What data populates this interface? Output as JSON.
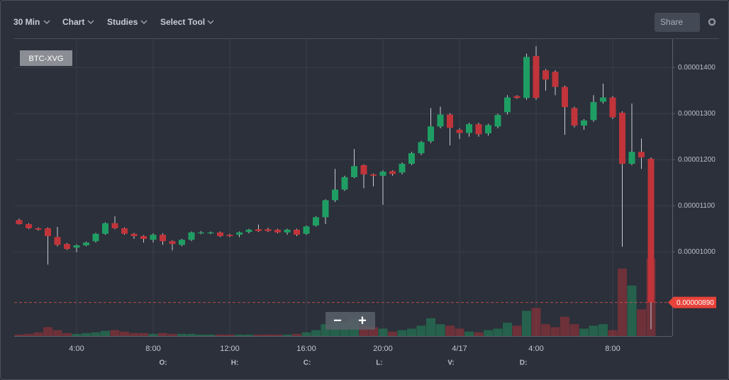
{
  "ui": {
    "interval": "30 Min",
    "chart_menu": "Chart",
    "studies_menu": "Studies",
    "tool_menu": "Select Tool",
    "share": "Share",
    "symbol": "BTC-XVG",
    "zoom_out": "−",
    "zoom_in": "+",
    "ohlc_labels": [
      "O:",
      "H:",
      "C:",
      "L:",
      "V:",
      "D:"
    ]
  },
  "chart_data": {
    "type": "candlestick",
    "categories": [
      null,
      null,
      null,
      null,
      null,
      null,
      "4:00",
      null,
      null,
      null,
      null,
      null,
      null,
      null,
      "8:00",
      null,
      null,
      null,
      null,
      null,
      null,
      null,
      "12:00",
      null,
      null,
      null,
      null,
      null,
      null,
      null,
      "16:00",
      null,
      null,
      null,
      null,
      null,
      null,
      null,
      "20:00",
      null,
      null,
      null,
      null,
      null,
      null,
      null,
      "4/17",
      null,
      null,
      null,
      null,
      null,
      null,
      null,
      "4:00",
      null,
      null,
      null,
      null,
      null,
      null,
      null,
      "8:00",
      null,
      null,
      null,
      null
    ],
    "open": [
      1.069e-05,
      1.06e-05,
      1.051e-05,
      1.051e-05,
      1.032e-05,
      1.017e-05,
      1.009e-05,
      1.014e-05,
      1.023e-05,
      1.039e-05,
      1.062e-05,
      1.051e-05,
      1.039e-05,
      1.034e-05,
      1.026e-05,
      1.037e-05,
      1.023e-05,
      1.015e-05,
      1.026e-05,
      1.04e-05,
      1.04e-05,
      1.042e-05,
      1.037e-05,
      1.037e-05,
      1.043e-05,
      1.049e-05,
      1.049e-05,
      1.048e-05,
      1.042e-05,
      1.048e-05,
      1.039e-05,
      1.057e-05,
      1.075e-05,
      1.112e-05,
      1.135e-05,
      1.162e-05,
      1.188e-05,
      1.168e-05,
      1.165e-05,
      1.175e-05,
      1.172e-05,
      1.191e-05,
      1.214e-05,
      1.24e-05,
      1.272e-05,
      1.298e-05,
      1.265e-05,
      1.258e-05,
      1.277e-05,
      1.257e-05,
      1.272e-05,
      1.303e-05,
      1.338e-05,
      1.334e-05,
      1.425e-05,
      1.394e-05,
      1.391e-05,
      1.358e-05,
      1.312e-05,
      1.274e-05,
      1.286e-05,
      1.326e-05,
      1.335e-05,
      1.302e-05,
      1.191e-05,
      1.217e-05,
      1.202e-05
    ],
    "high": [
      1.072e-05,
      1.062e-05,
      1.053e-05,
      1.053e-05,
      1.054e-05,
      1.019e-05,
      1.016e-05,
      1.022e-05,
      1.041e-05,
      1.064e-05,
      1.077e-05,
      1.053e-05,
      1.041e-05,
      1.036e-05,
      1.04e-05,
      1.04e-05,
      1.025e-05,
      1.028e-05,
      1.044e-05,
      1.045e-05,
      1.044e-05,
      1.044e-05,
      1.039e-05,
      1.044e-05,
      1.05e-05,
      1.059e-05,
      1.052e-05,
      1.05e-05,
      1.05e-05,
      1.05e-05,
      1.057e-05,
      1.077e-05,
      1.114e-05,
      1.18e-05,
      1.165e-05,
      1.223e-05,
      1.19e-05,
      1.17e-05,
      1.177e-05,
      1.177e-05,
      1.194e-05,
      1.217e-05,
      1.241e-05,
      1.312e-05,
      1.315e-05,
      1.301e-05,
      1.268e-05,
      1.28e-05,
      1.28e-05,
      1.278e-05,
      1.3e-05,
      1.34e-05,
      1.34e-05,
      1.43e-05,
      1.446e-05,
      1.397e-05,
      1.394e-05,
      1.361e-05,
      1.315e-05,
      1.288e-05,
      1.34e-05,
      1.365e-05,
      1.338e-05,
      1.305e-05,
      1.322e-05,
      1.246e-05,
      1.205e-05
    ],
    "low": [
      1.059e-05,
      1.049e-05,
      1.046e-05,
      9.72e-06,
      1.012e-05,
      1.004e-05,
      9.99e-06,
      1.012e-05,
      1.02e-05,
      1.037e-05,
      1.049e-05,
      1.037e-05,
      1.028e-05,
      1.02e-05,
      1.02e-05,
      1.015e-05,
      1.003e-05,
      1.012e-05,
      1.023e-05,
      1.038e-05,
      1.038e-05,
      1.032e-05,
      1.032e-05,
      1.032e-05,
      1.04e-05,
      1.043e-05,
      1.043e-05,
      1.04e-05,
      1.037e-05,
      1.034e-05,
      1.037e-05,
      1.055e-05,
      1.06e-05,
      1.108e-05,
      1.132e-05,
      1.16e-05,
      1.138e-05,
      1.142e-05,
      1.102e-05,
      1.165e-05,
      1.168e-05,
      1.188e-05,
      1.21e-05,
      1.236e-05,
      1.268e-05,
      1.231e-05,
      1.245e-05,
      1.25e-05,
      1.25e-05,
      1.252e-05,
      1.268e-05,
      1.298e-05,
      1.332e-05,
      1.33e-05,
      1.33e-05,
      1.35e-05,
      1.34e-05,
      1.254e-05,
      1.27e-05,
      1.265e-05,
      1.282e-05,
      1.322e-05,
      1.288e-05,
      1.011e-05,
      1.188e-05,
      1.18e-05,
      8.32e-06
    ],
    "close": [
      1.06e-05,
      1.051e-05,
      1.048e-05,
      1.034e-05,
      1.015e-05,
      1.006e-05,
      1.014e-05,
      1.02e-05,
      1.039e-05,
      1.062e-05,
      1.051e-05,
      1.039e-05,
      1.034e-05,
      1.028e-05,
      1.037e-05,
      1.023e-05,
      1.017e-05,
      1.026e-05,
      1.042e-05,
      1.042e-05,
      1.042e-05,
      1.034e-05,
      1.034e-05,
      1.042e-05,
      1.048e-05,
      1.045e-05,
      1.045e-05,
      1.042e-05,
      1.048e-05,
      1.037e-05,
      1.055e-05,
      1.075e-05,
      1.112e-05,
      1.135e-05,
      1.162e-05,
      1.186e-05,
      1.168e-05,
      1.165e-05,
      1.174e-05,
      1.169e-05,
      1.191e-05,
      1.214e-05,
      1.238e-05,
      1.272e-05,
      1.298e-05,
      1.269e-05,
      1.258e-05,
      1.277e-05,
      1.255e-05,
      1.275e-05,
      1.297e-05,
      1.335e-05,
      1.334e-05,
      1.423e-05,
      1.334e-05,
      1.374e-05,
      1.358e-05,
      1.314e-05,
      1.274e-05,
      1.285e-05,
      1.325e-05,
      1.335e-05,
      1.292e-05,
      1.191e-05,
      1.217e-05,
      1.205e-05,
      8.9e-06
    ],
    "volume": [
      2,
      3,
      5,
      12,
      8,
      4,
      3,
      4,
      5,
      7,
      8,
      6,
      4,
      4,
      3,
      4,
      3,
      3,
      3,
      2,
      2,
      2,
      2,
      2,
      2,
      2,
      2,
      2,
      2,
      3,
      5,
      8,
      16,
      22,
      18,
      24,
      14,
      12,
      10,
      6,
      8,
      10,
      14,
      24,
      16,
      14,
      10,
      6,
      5,
      8,
      10,
      18,
      14,
      34,
      38,
      16,
      12,
      26,
      16,
      10,
      14,
      16,
      8,
      91,
      68,
      36,
      104
    ],
    "vlim": [
      0,
      120
    ],
    "up_color": "#1e9e63",
    "down_color": "#c0343a",
    "ylim": [
      8.17e-06,
      1.462e-05
    ],
    "yticks": [
      {
        "value": 1e-05,
        "label": "0.00001000"
      },
      {
        "value": 1.1e-05,
        "label": "0.00001100"
      },
      {
        "value": 1.2e-05,
        "label": "0.00001200"
      },
      {
        "value": 1.3e-05,
        "label": "0.00001300"
      },
      {
        "value": 1.4e-05,
        "label": "0.00001400"
      }
    ],
    "last_price": {
      "value": 8.9e-06,
      "label": "0.00000890"
    },
    "grid": true
  }
}
